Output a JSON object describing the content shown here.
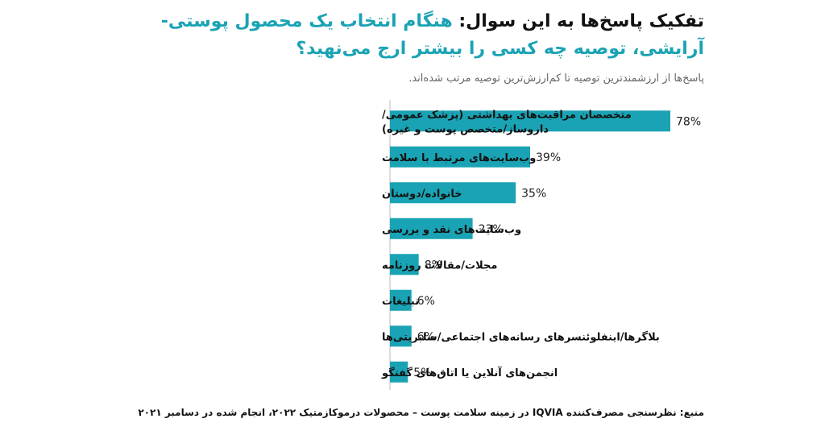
{
  "header": {
    "title_lead": "تفکیک پاسخ‌ها به این سوال: ",
    "title_question": "هنگام انتخاب یک محصول پوستی-آرایشی، توصیه چه کسی را بیشتر ارج می‌نهید؟",
    "subtitle": "پاسخ‌ها از ارزشمندترین توصیه تا کم‌ارزش‌ترین توصیه مرتب شده‌اند."
  },
  "footer": {
    "source": "منبع: نظرسنجی مصرف‌کننده IQVIA در زمینه سلامت پوست – محصولات درموکازمتیک ۲۰۲۲، انجام شده در دسامبر ۲۰۲۱"
  },
  "chart_data": {
    "type": "bar",
    "orientation": "horizontal",
    "categories": [
      [
        "متخصصان مراقبت‌های بهداشتی (پزشک عمومی/",
        "داروساز/متخصص پوست و غیره)"
      ],
      [
        "وب‌سایت‌های مرتبط با سلامت"
      ],
      [
        "خانواده/دوستان"
      ],
      [
        "وب‌سایت‌های نقد و بررسی"
      ],
      [
        "مجلات/مقالات روزنامه"
      ],
      [
        "تبلیغات"
      ],
      [
        "بلاگرها/اینفلوئنسرهای رسانه‌های اجتماعی/سلبریتی‌ها"
      ],
      [
        "انجمن‌های آنلاین یا اتاق‌های گفتگو"
      ]
    ],
    "values": [
      78,
      39,
      35,
      23,
      8,
      6,
      6,
      5
    ],
    "value_labels": [
      "78%",
      "39%",
      "35%",
      "23%",
      "8%",
      "6%",
      "6%",
      "5%"
    ],
    "bar_color": "#1aa3b4",
    "axis_color": "#bbbbbb",
    "xlim": [
      0,
      78
    ],
    "grid": false,
    "legend": "none"
  }
}
